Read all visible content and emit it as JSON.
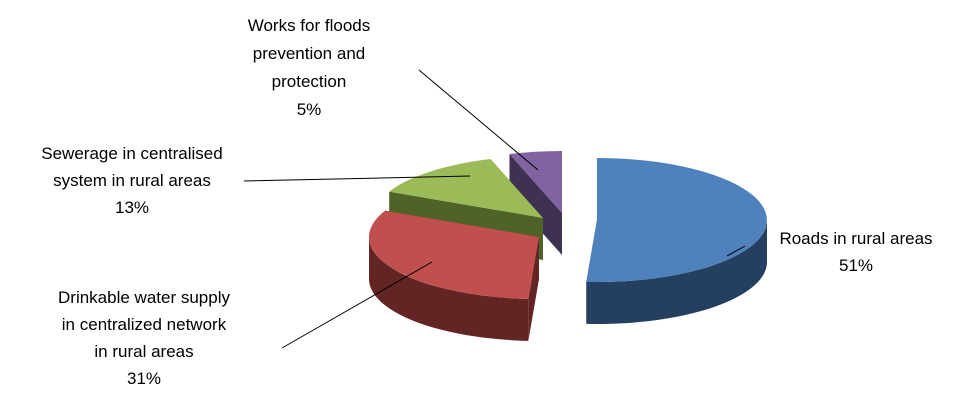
{
  "chart_data": {
    "type": "pie",
    "style": "3d exploded",
    "legend": "none",
    "slices": [
      {
        "label": "Roads in rural areas",
        "label_lines": [
          "Roads in rural areas",
          "51%"
        ],
        "value": 51,
        "percent_label": "51%",
        "top_color": "#4f81bd",
        "side_color": "#243f60",
        "key": "roads"
      },
      {
        "label": "Drinkable water supply in centralized network in rural areas",
        "label_lines": [
          "Drinkable water supply",
          "in centralized network",
          "in rural areas",
          "31%"
        ],
        "value": 31,
        "percent_label": "31%",
        "top_color": "#c0504d",
        "side_color": "#632523",
        "key": "water"
      },
      {
        "label": "Sewerage in centralised system in rural areas",
        "label_lines": [
          "Sewerage in centralised",
          "system in rural areas",
          "13%"
        ],
        "value": 13,
        "percent_label": "13%",
        "top_color": "#9bbb59",
        "side_color": "#4f6228",
        "key": "sewerage"
      },
      {
        "label": "Works for floods prevention and protection",
        "label_lines": [
          "Works for floods",
          "prevention and",
          "protection",
          "5%"
        ],
        "value": 5,
        "percent_label": "5%",
        "top_color": "#8064a2",
        "side_color": "#3f3151",
        "key": "floods"
      }
    ]
  }
}
